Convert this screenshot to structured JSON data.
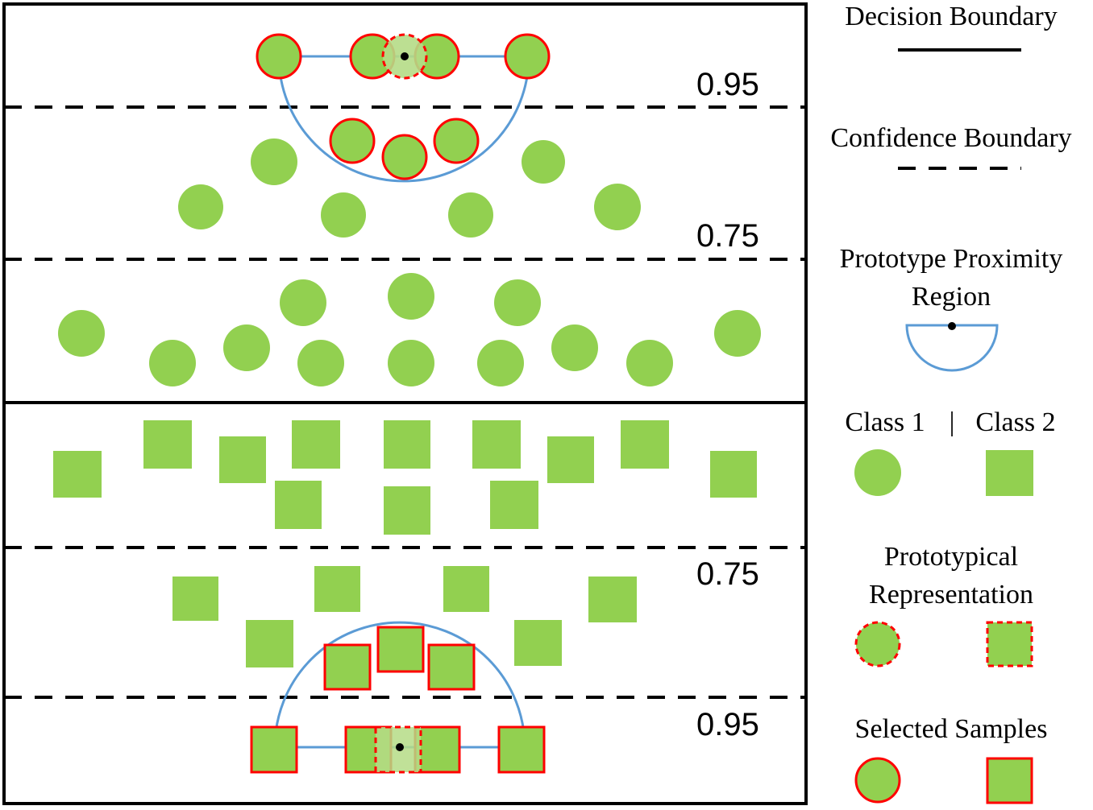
{
  "thresholds": {
    "c1_upper": "0.95",
    "c1_lower": "0.75",
    "c2_upper": "0.75",
    "c2_lower": "0.95"
  },
  "legend": {
    "decision_boundary": "Decision Boundary",
    "confidence_boundary": "Confidence Boundary",
    "proximity_line1": "Prototype Proximity",
    "proximity_line2": "Region",
    "class1": "Class 1",
    "separator": "|",
    "class2": "Class 2",
    "prototypical_line1": "Prototypical",
    "prototypical_line2": "Representation",
    "selected": "Selected Samples"
  },
  "colors": {
    "fill": "#92d050",
    "selected_stroke": "#ff0000",
    "region_stroke": "#5b9bd5",
    "boundary": "#000000"
  }
}
